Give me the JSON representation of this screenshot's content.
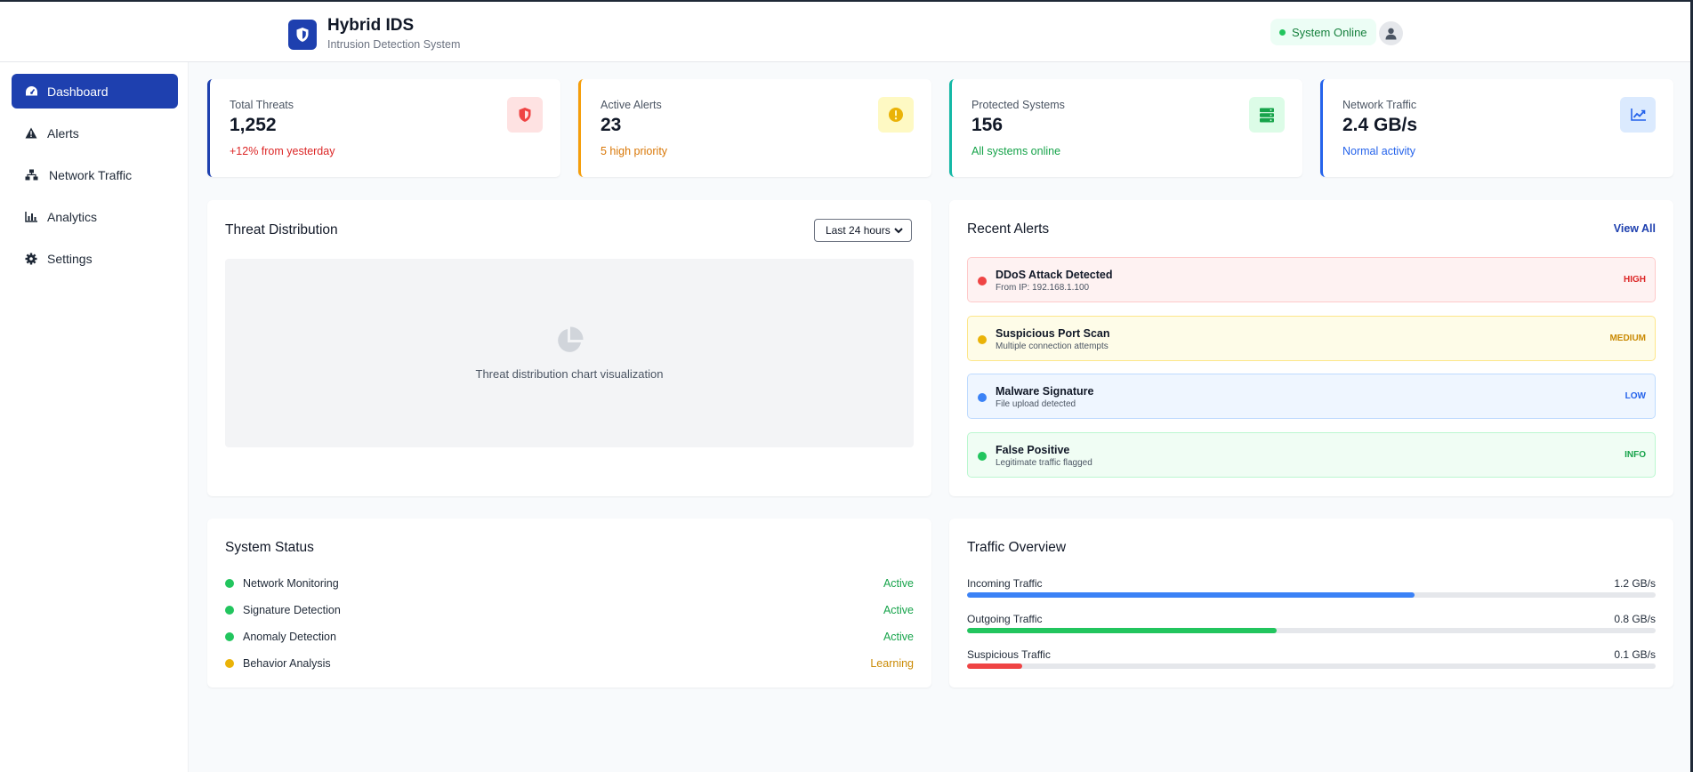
{
  "app": {
    "title": "Hybrid IDS",
    "subtitle": "Intrusion Detection System",
    "status": "System Online"
  },
  "sidebar": {
    "items": [
      {
        "label": "Dashboard",
        "icon": "gauge-icon",
        "active": true
      },
      {
        "label": "Alerts",
        "icon": "warning-icon",
        "active": false
      },
      {
        "label": "Network Traffic",
        "icon": "network-icon",
        "active": false
      },
      {
        "label": "Analytics",
        "icon": "bar-chart-icon",
        "active": false
      },
      {
        "label": "Settings",
        "icon": "gear-icon",
        "active": false
      }
    ]
  },
  "stats": [
    {
      "label": "Total Threats",
      "value": "1,252",
      "sub": "+12% from yesterday",
      "color": "#1e40af",
      "sub_color": "#dc2626",
      "icon": "shield-icon"
    },
    {
      "label": "Active Alerts",
      "value": "23",
      "sub": "5 high priority",
      "color": "#f59e0b",
      "sub_color": "#d97706",
      "icon": "exclamation-icon"
    },
    {
      "label": "Protected Systems",
      "value": "156",
      "sub": "All systems online",
      "color": "#14b8a6",
      "sub_color": "#16a34a",
      "icon": "server-icon"
    },
    {
      "label": "Network Traffic",
      "value": "2.4 GB/s",
      "sub": "Normal activity",
      "color": "#2563eb",
      "sub_color": "#2563eb",
      "icon": "trend-icon"
    }
  ],
  "threat_distribution": {
    "title": "Threat Distribution",
    "range": "Last 24 hours",
    "placeholder": "Threat distribution chart visualization"
  },
  "recent_alerts": {
    "title": "Recent Alerts",
    "view_all": "View All",
    "items": [
      {
        "title": "DDoS Attack Detected",
        "desc": "From IP: 192.168.1.100",
        "level": "HIGH"
      },
      {
        "title": "Suspicious Port Scan",
        "desc": "Multiple connection attempts",
        "level": "MEDIUM"
      },
      {
        "title": "Malware Signature",
        "desc": "File upload detected",
        "level": "LOW"
      },
      {
        "title": "False Positive",
        "desc": "Legitimate traffic flagged",
        "level": "INFO"
      }
    ]
  },
  "system_status": {
    "title": "System Status",
    "items": [
      {
        "label": "Network Monitoring",
        "state": "Active"
      },
      {
        "label": "Signature Detection",
        "state": "Active"
      },
      {
        "label": "Anomaly Detection",
        "state": "Active"
      },
      {
        "label": "Behavior Analysis",
        "state": "Learning"
      }
    ]
  },
  "traffic_overview": {
    "title": "Traffic Overview",
    "items": [
      {
        "label": "Incoming Traffic",
        "value": "1.2 GB/s",
        "fraction": 0.65,
        "color": "#3b82f6"
      },
      {
        "label": "Outgoing Traffic",
        "value": "0.8 GB/s",
        "fraction": 0.45,
        "color": "#22c55e"
      },
      {
        "label": "Suspicious Traffic",
        "value": "0.1 GB/s",
        "fraction": 0.08,
        "color": "#ef4444"
      }
    ]
  }
}
